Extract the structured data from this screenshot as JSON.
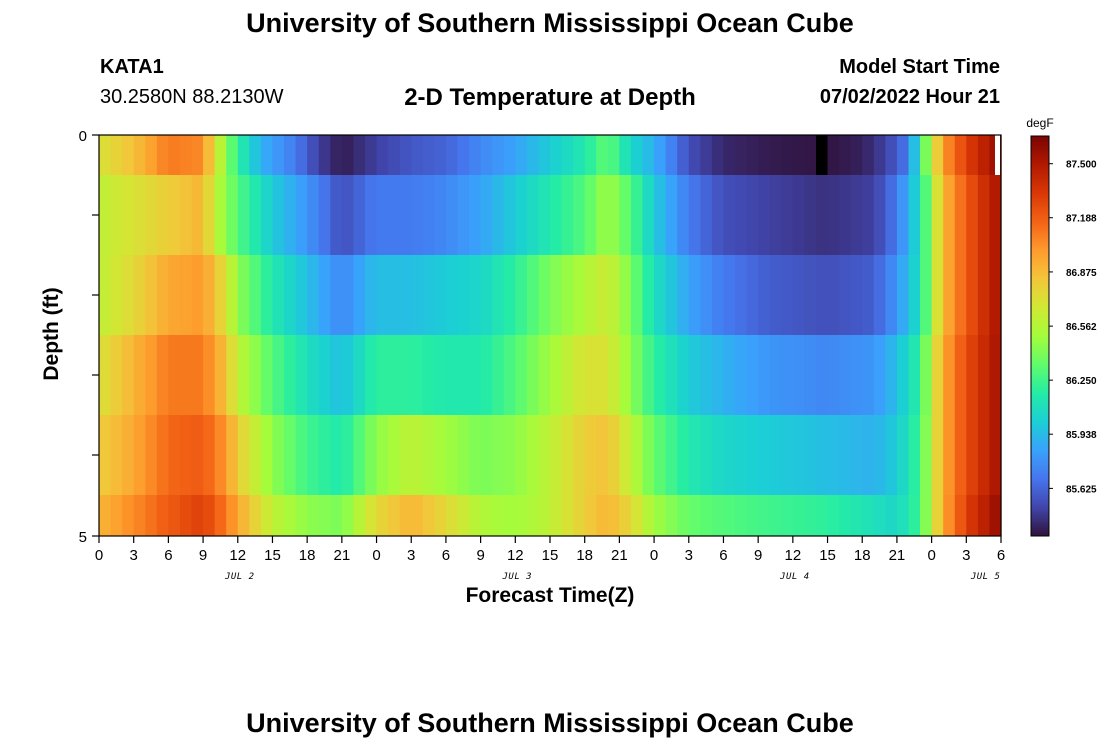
{
  "header": {
    "title": "University of Southern Mississippi Ocean Cube",
    "station": "KATA1",
    "coordinates": "30.2580N  88.2130W",
    "subtitle": "2-D Temperature at Depth",
    "model_start_label": "Model Start Time",
    "model_start_value": "07/02/2022 Hour 21"
  },
  "footer": {
    "title": "University of Southern Mississippi Ocean Cube"
  },
  "colors": {
    "scale": [
      "#30123b",
      "#4145ab",
      "#4675ed",
      "#39a2fc",
      "#1bcfd4",
      "#24eca6",
      "#61fc6c",
      "#a4fc3b",
      "#d1e834",
      "#f3c63a",
      "#fe9b2d",
      "#f36315",
      "#d93806",
      "#b11901",
      "#7a0403"
    ]
  },
  "chart_data": {
    "type": "heatmap",
    "title": "2-D Temperature at Depth",
    "xlabel": "Forecast Time(Z)",
    "ylabel": "Depth (ft)",
    "ylim": [
      0,
      5
    ],
    "y_tick_labels": [
      "0",
      "5"
    ],
    "x_tick_labels": [
      "0",
      "3",
      "6",
      "9",
      "12",
      "15",
      "18",
      "21",
      "0",
      "3",
      "6",
      "9",
      "12",
      "15",
      "18",
      "21",
      "0",
      "3",
      "6",
      "9",
      "12",
      "15",
      "18",
      "21",
      "0",
      "3",
      "6"
    ],
    "date_labels": [
      {
        "hour": 12,
        "label": "JUL 2"
      },
      {
        "hour": 36,
        "label": "JUL 3"
      },
      {
        "hour": 60,
        "label": "JUL 4"
      },
      {
        "hour": 76.5,
        "label": "JUL 5"
      }
    ],
    "x_hours_range": [
      0,
      78
    ],
    "depth_layers": 5,
    "colorbar": {
      "unit": "degF",
      "min": 85.35,
      "max": 87.66,
      "tick_labels": [
        "87.500",
        "87.188",
        "86.875",
        "86.562",
        "86.250",
        "85.938",
        "85.625"
      ],
      "tick_values": [
        87.5,
        87.188,
        86.875,
        86.562,
        86.25,
        85.938,
        85.625
      ]
    },
    "missing": [
      {
        "row": 0,
        "hour": 62.5
      }
    ],
    "rows": [
      {
        "depth": "0.0-0.5",
        "keyframes": [
          [
            0,
            86.7
          ],
          [
            3,
            86.85
          ],
          [
            6,
            87.1
          ],
          [
            9,
            87.05
          ],
          [
            10,
            86.7
          ],
          [
            12,
            86.2
          ],
          [
            14,
            85.9
          ],
          [
            17,
            85.7
          ],
          [
            19,
            85.5
          ],
          [
            21,
            85.38
          ],
          [
            24,
            85.5
          ],
          [
            27,
            85.58
          ],
          [
            30,
            85.62
          ],
          [
            33,
            85.75
          ],
          [
            36,
            85.85
          ],
          [
            39,
            86.0
          ],
          [
            42,
            86.15
          ],
          [
            44,
            86.35
          ],
          [
            46,
            86.05
          ],
          [
            48,
            85.9
          ],
          [
            51,
            85.55
          ],
          [
            54,
            85.42
          ],
          [
            58,
            85.38
          ],
          [
            63,
            85.36
          ],
          [
            66,
            85.4
          ],
          [
            68,
            85.5
          ],
          [
            70,
            85.7
          ],
          [
            71,
            86.2
          ],
          [
            72,
            86.6
          ],
          [
            73,
            87.0
          ],
          [
            75,
            87.3
          ],
          [
            78,
            87.6
          ]
        ]
      },
      {
        "depth": "0.5-1.5",
        "keyframes": [
          [
            0,
            86.6
          ],
          [
            3,
            86.7
          ],
          [
            6,
            86.8
          ],
          [
            9,
            86.9
          ],
          [
            10,
            86.6
          ],
          [
            12,
            86.3
          ],
          [
            15,
            86.0
          ],
          [
            18,
            85.8
          ],
          [
            21,
            85.55
          ],
          [
            24,
            85.7
          ],
          [
            27,
            85.7
          ],
          [
            30,
            85.75
          ],
          [
            33,
            85.85
          ],
          [
            36,
            86.0
          ],
          [
            39,
            86.15
          ],
          [
            42,
            86.3
          ],
          [
            44,
            86.5
          ],
          [
            46,
            86.3
          ],
          [
            48,
            86.0
          ],
          [
            51,
            85.7
          ],
          [
            54,
            85.55
          ],
          [
            58,
            85.5
          ],
          [
            63,
            85.45
          ],
          [
            67,
            85.5
          ],
          [
            69,
            85.7
          ],
          [
            71,
            86.1
          ],
          [
            72,
            86.5
          ],
          [
            73,
            86.9
          ],
          [
            75,
            87.2
          ],
          [
            78,
            87.55
          ]
        ]
      },
      {
        "depth": "1.5-2.5",
        "keyframes": [
          [
            0,
            86.6
          ],
          [
            3,
            86.75
          ],
          [
            6,
            86.95
          ],
          [
            9,
            87.0
          ],
          [
            11,
            86.7
          ],
          [
            12,
            86.45
          ],
          [
            15,
            86.15
          ],
          [
            18,
            85.95
          ],
          [
            21,
            85.75
          ],
          [
            24,
            85.95
          ],
          [
            27,
            85.95
          ],
          [
            30,
            86.0
          ],
          [
            33,
            86.05
          ],
          [
            36,
            86.2
          ],
          [
            39,
            86.4
          ],
          [
            42,
            86.55
          ],
          [
            44,
            86.65
          ],
          [
            46,
            86.4
          ],
          [
            48,
            86.1
          ],
          [
            51,
            85.85
          ],
          [
            54,
            85.7
          ],
          [
            58,
            85.6
          ],
          [
            63,
            85.55
          ],
          [
            67,
            85.6
          ],
          [
            69,
            85.8
          ],
          [
            71,
            86.1
          ],
          [
            72,
            86.5
          ],
          [
            73,
            86.9
          ],
          [
            75,
            87.2
          ],
          [
            78,
            87.55
          ]
        ]
      },
      {
        "depth": "2.5-3.5",
        "keyframes": [
          [
            0,
            86.7
          ],
          [
            3,
            86.9
          ],
          [
            6,
            87.1
          ],
          [
            9,
            87.1
          ],
          [
            11,
            86.85
          ],
          [
            12,
            86.6
          ],
          [
            15,
            86.3
          ],
          [
            18,
            86.1
          ],
          [
            21,
            85.95
          ],
          [
            24,
            86.2
          ],
          [
            27,
            86.2
          ],
          [
            30,
            86.15
          ],
          [
            33,
            86.15
          ],
          [
            36,
            86.3
          ],
          [
            39,
            86.5
          ],
          [
            42,
            86.7
          ],
          [
            44,
            86.7
          ],
          [
            46,
            86.45
          ],
          [
            48,
            86.2
          ],
          [
            51,
            86.0
          ],
          [
            54,
            85.9
          ],
          [
            58,
            85.8
          ],
          [
            63,
            85.75
          ],
          [
            67,
            85.8
          ],
          [
            69,
            85.95
          ],
          [
            71,
            86.2
          ],
          [
            72,
            86.6
          ],
          [
            73,
            86.95
          ],
          [
            75,
            87.25
          ],
          [
            78,
            87.55
          ]
        ]
      },
      {
        "depth": "3.5-4.5",
        "keyframes": [
          [
            0,
            86.8
          ],
          [
            3,
            86.95
          ],
          [
            6,
            87.15
          ],
          [
            9,
            87.2
          ],
          [
            11,
            87.0
          ],
          [
            12,
            86.8
          ],
          [
            15,
            86.45
          ],
          [
            18,
            86.25
          ],
          [
            21,
            86.15
          ],
          [
            24,
            86.45
          ],
          [
            27,
            86.6
          ],
          [
            30,
            86.5
          ],
          [
            33,
            86.4
          ],
          [
            36,
            86.45
          ],
          [
            39,
            86.6
          ],
          [
            42,
            86.8
          ],
          [
            44,
            86.85
          ],
          [
            46,
            86.6
          ],
          [
            48,
            86.35
          ],
          [
            51,
            86.15
          ],
          [
            54,
            86.05
          ],
          [
            58,
            86.0
          ],
          [
            63,
            85.95
          ],
          [
            67,
            85.9
          ],
          [
            69,
            86.0
          ],
          [
            71,
            86.25
          ],
          [
            72,
            86.6
          ],
          [
            73,
            86.95
          ],
          [
            75,
            87.25
          ],
          [
            78,
            87.55
          ]
        ]
      },
      {
        "depth": "4.5-5.0",
        "keyframes": [
          [
            0,
            86.9
          ],
          [
            3,
            87.05
          ],
          [
            6,
            87.2
          ],
          [
            9,
            87.3
          ],
          [
            11,
            87.1
          ],
          [
            12,
            86.95
          ],
          [
            15,
            86.6
          ],
          [
            18,
            86.45
          ],
          [
            21,
            86.4
          ],
          [
            24,
            86.75
          ],
          [
            27,
            86.9
          ],
          [
            30,
            86.75
          ],
          [
            33,
            86.55
          ],
          [
            36,
            86.5
          ],
          [
            39,
            86.6
          ],
          [
            42,
            86.8
          ],
          [
            44,
            86.9
          ],
          [
            46,
            86.75
          ],
          [
            48,
            86.5
          ],
          [
            51,
            86.35
          ],
          [
            54,
            86.3
          ],
          [
            58,
            86.25
          ],
          [
            63,
            86.2
          ],
          [
            67,
            86.1
          ],
          [
            69,
            86.05
          ],
          [
            71,
            86.25
          ],
          [
            72,
            86.6
          ],
          [
            73,
            86.95
          ],
          [
            75,
            87.3
          ],
          [
            78,
            87.6
          ]
        ]
      }
    ]
  }
}
